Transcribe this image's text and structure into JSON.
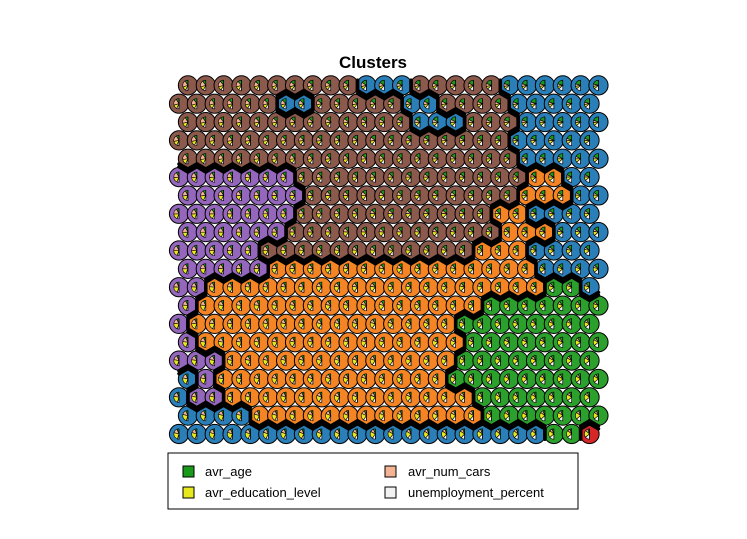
{
  "chart_data": {
    "type": "som-hexagonal-codes-map",
    "title": "Clusters",
    "grid": {
      "xdim": 24,
      "ydim": 20,
      "topology": "hexagonal"
    },
    "variables": [
      {
        "name": "avr_age",
        "color": "#1a9a1a"
      },
      {
        "name": "avr_num_cars",
        "color": "#f4b393"
      },
      {
        "name": "avr_education_level",
        "color": "#e8e81e"
      },
      {
        "name": "unemployment_percent",
        "color": "#f2f2f2"
      }
    ],
    "legend": {
      "position": "bottom",
      "items": [
        "avr_age",
        "avr_num_cars",
        "avr_education_level",
        "unemployment_percent"
      ]
    },
    "cluster_colors": {
      "blue": "#2b7fb8",
      "brown": "#8c5a4d",
      "purple": "#9467bd",
      "orange": "#f58524",
      "green": "#2ca02c",
      "red": "#d62728"
    },
    "cluster_map": [
      "BBBBBBBBBBBBBBBBBBBBBGGR",
      "BBBBOOOOOOOOOOOOOGGGGGGG",
      "BPPOOOOOOOOOOOOOOGGGGGGG",
      "BPOOOOOOOOOOOOOGGGGGGGGG",
      "PPPOOOOOOOOOOOOOGGGGGGGG",
      "POOOOOOOOOOOOOOOGGGGGGGG",
      "POOOOOOOOOOOOOOOGGGGGGGG",
      "POOOOOOOOOOOOOOOOGGGGGGG",
      "PPOOOOOOOOOOOOOOOOOOOGGB",
      "PPPPPOOOOOOOOOOOOOOOBBBB",
      "PPPPPMMMMMMMMMMMMOOOBBBB",
      "PPPPPPMMMMMMMMMMMMOOOBBB",
      "PPPPPPPMMMMMMMMMMMOOBBBB",
      "PPPPPPPMMMMMMMMMMMMOOOBB",
      "PPPPPPPMMMMMMMMMMMMMOOBB",
      "MMMMMMMMMMMMMMMMMMMBBBBB",
      "MMMMMMMMMMMMMMMMMMMBBBBB",
      "MMMMMMMMMMMMMBBBMMMBBBBB",
      "MMMMMMBBMMMMMBBMMMMBBBBB",
      "MMMMMMMMMMBBBMMMMMBBBBBB"
    ]
  }
}
